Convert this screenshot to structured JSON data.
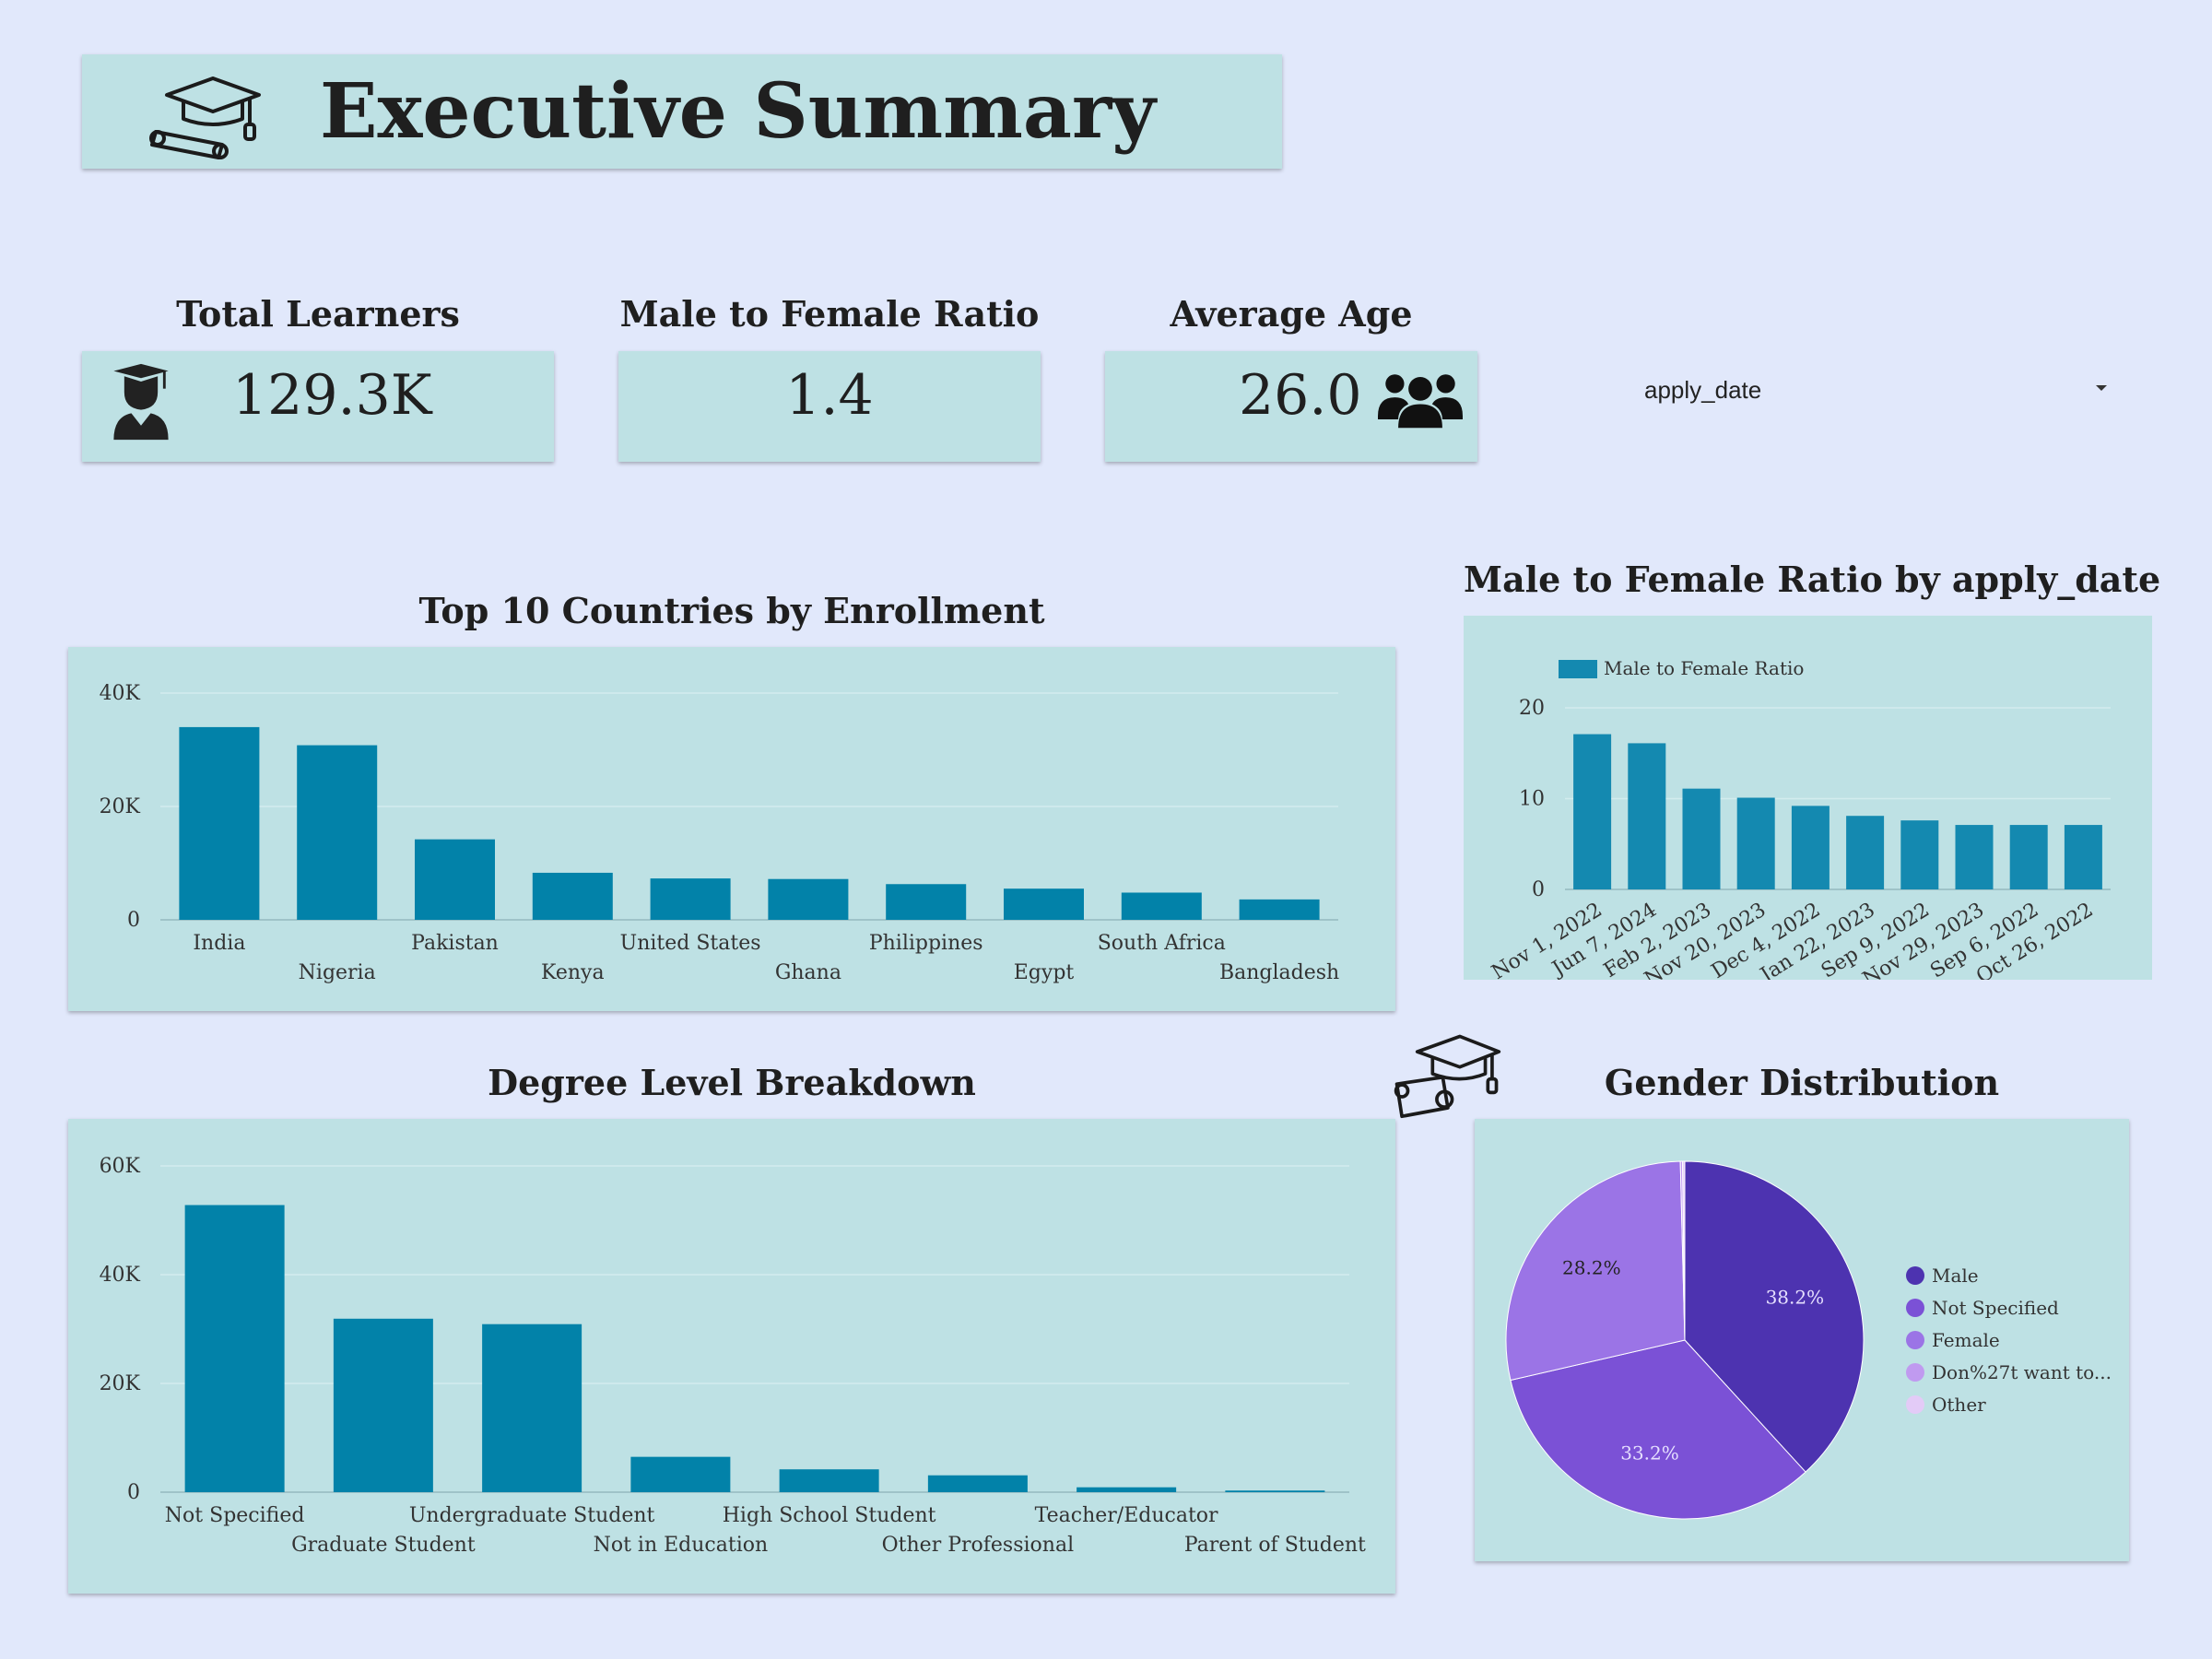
{
  "header": {
    "title": "Executive Summary",
    "icon": "graduation-cap-diploma-icon"
  },
  "kpis": {
    "total_learners": {
      "label": "Total Learners",
      "value": "129.3K",
      "icon": "student-icon"
    },
    "ratio": {
      "label": "Male to Female Ratio",
      "value": "1.4"
    },
    "avg_age": {
      "label": "Average Age",
      "value": "26.0",
      "icon": "users-group-icon"
    }
  },
  "filter": {
    "value": "apply_date"
  },
  "colors": {
    "bar": "#0282a9",
    "bar_alt": "#1489b0",
    "background": "#e1e8fb",
    "card": "#bee1e4"
  },
  "chart_data": [
    {
      "id": "countries",
      "type": "bar",
      "title": "Top 10 Countries by Enrollment",
      "categories": [
        "India",
        "Nigeria",
        "Pakistan",
        "Kenya",
        "United States",
        "Ghana",
        "Philippines",
        "Egypt",
        "South Africa",
        "Bangladesh"
      ],
      "values": [
        34000,
        30800,
        14200,
        8300,
        7300,
        7200,
        6300,
        5500,
        4800,
        3600
      ],
      "ylim": [
        0,
        40000
      ],
      "yticks": [
        "0",
        "20K",
        "40K"
      ],
      "xlabel": "",
      "ylabel": "",
      "grid": true
    },
    {
      "id": "ratio_by_date",
      "type": "bar",
      "title": "Male to Female Ratio by apply_date",
      "categories": [
        "Nov 1, 2022",
        "Jun 7, 2024",
        "Feb 2, 2023",
        "Nov 20, 2023",
        "Dec 4, 2022",
        "Jan 22, 2023",
        "Sep 9, 2022",
        "Nov 29, 2023",
        "Sep 6, 2022",
        "Oct 26, 2022"
      ],
      "series": [
        {
          "name": "Male to Female Ratio",
          "values": [
            17.1,
            16.1,
            11.1,
            10.1,
            9.2,
            8.1,
            7.6,
            7.1,
            7.1,
            7.1
          ]
        }
      ],
      "ylim": [
        0,
        20
      ],
      "yticks": [
        "0",
        "10",
        "20"
      ],
      "legend": "top-left",
      "grid": true
    },
    {
      "id": "degree",
      "type": "bar",
      "title": "Degree Level Breakdown",
      "categories": [
        "Not Specified",
        "Graduate Student",
        "Undergraduate Student",
        "Not in Education",
        "High School Student",
        "Other Professional",
        "Teacher/Educator",
        "Parent of Student"
      ],
      "values": [
        52800,
        31900,
        30900,
        6500,
        4200,
        3100,
        900,
        300
      ],
      "ylim": [
        0,
        60000
      ],
      "yticks": [
        "0",
        "20K",
        "40K",
        "60K"
      ],
      "grid": true
    },
    {
      "id": "gender",
      "type": "pie",
      "title": "Gender Distribution",
      "labels": [
        "Male",
        "Not Specified",
        "Female",
        "Don%27t want to...",
        "Other"
      ],
      "values": [
        38.2,
        33.2,
        28.2,
        0.2,
        0.2
      ],
      "data_labels": [
        "38.2%",
        "33.2%",
        "28.2%",
        "",
        ""
      ],
      "colors": [
        "#4d33b0",
        "#7b51d6",
        "#9b74e6",
        "#c09af0",
        "#e3cbf7"
      ],
      "legend": "right"
    }
  ]
}
